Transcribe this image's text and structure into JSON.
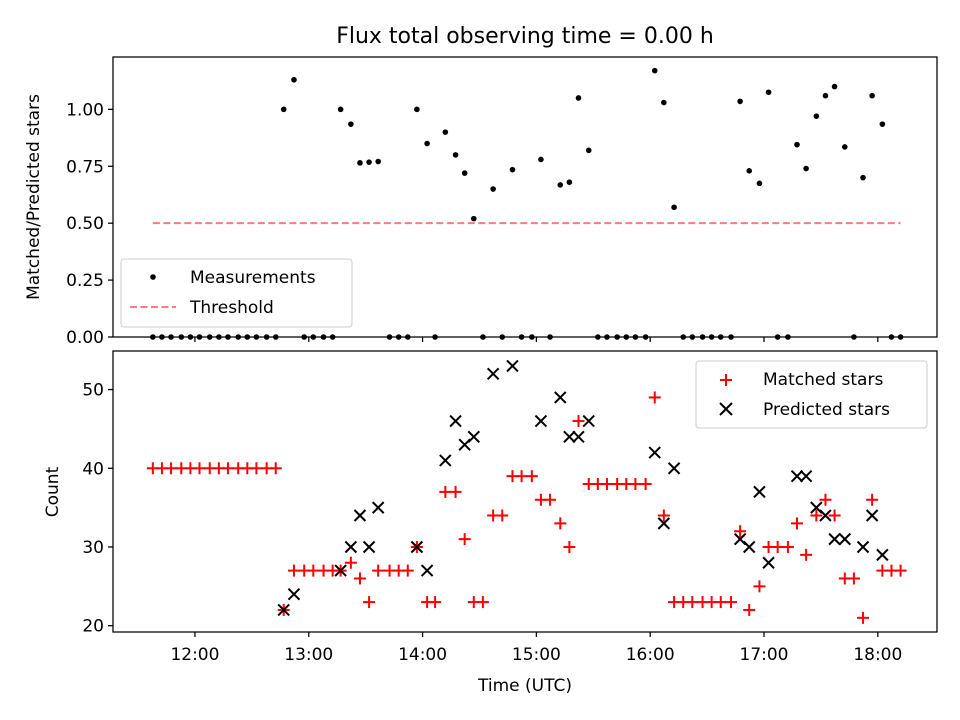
{
  "chart_data": [
    {
      "type": "scatter",
      "title": "Flux total observing time = 0.00 h",
      "xlabel": "",
      "ylabel": "Matched/Predicted stars",
      "xlim": [
        11.28,
        18.52
      ],
      "ylim": [
        0.0,
        1.23
      ],
      "yticks": [
        0.0,
        0.25,
        0.5,
        0.75,
        1.0
      ],
      "ytick_labels": [
        "0.00",
        "0.25",
        "0.50",
        "0.75",
        "1.00"
      ],
      "legend": {
        "position": "lower-left",
        "entries": [
          "Measurements",
          "Threshold"
        ]
      },
      "series": [
        {
          "name": "Measurements",
          "marker": "dot",
          "color": "#000000",
          "points": [
            [
              11.63,
              0
            ],
            [
              11.71,
              0
            ],
            [
              11.79,
              0
            ],
            [
              11.88,
              0
            ],
            [
              11.96,
              0
            ],
            [
              12.04,
              0
            ],
            [
              12.13,
              0
            ],
            [
              12.21,
              0
            ],
            [
              12.29,
              0
            ],
            [
              12.38,
              0
            ],
            [
              12.46,
              0
            ],
            [
              12.54,
              0
            ],
            [
              12.63,
              0
            ],
            [
              12.71,
              0
            ],
            [
              12.78,
              1.0
            ],
            [
              12.87,
              1.13
            ],
            [
              12.96,
              0
            ],
            [
              13.04,
              0
            ],
            [
              13.13,
              0
            ],
            [
              13.21,
              0
            ],
            [
              13.28,
              1.0
            ],
            [
              13.37,
              0.935
            ],
            [
              13.45,
              0.765
            ],
            [
              13.53,
              0.768
            ],
            [
              13.61,
              0.771
            ],
            [
              13.71,
              0
            ],
            [
              13.79,
              0
            ],
            [
              13.87,
              0
            ],
            [
              13.95,
              1.0
            ],
            [
              14.04,
              0.85
            ],
            [
              14.11,
              0
            ],
            [
              14.2,
              0.9
            ],
            [
              14.29,
              0.8
            ],
            [
              14.37,
              0.72
            ],
            [
              14.45,
              0.52
            ],
            [
              14.53,
              0
            ],
            [
              14.62,
              0.65
            ],
            [
              14.7,
              0
            ],
            [
              14.79,
              0.735
            ],
            [
              14.87,
              0
            ],
            [
              14.96,
              0
            ],
            [
              15.04,
              0.78
            ],
            [
              15.12,
              0
            ],
            [
              15.21,
              0.668
            ],
            [
              15.29,
              0.68
            ],
            [
              15.37,
              1.05
            ],
            [
              15.46,
              0.82
            ],
            [
              15.54,
              0
            ],
            [
              15.62,
              0
            ],
            [
              15.71,
              0
            ],
            [
              15.79,
              0
            ],
            [
              15.87,
              0
            ],
            [
              15.96,
              0
            ],
            [
              16.04,
              1.17
            ],
            [
              16.12,
              1.03
            ],
            [
              16.21,
              0.57
            ],
            [
              16.29,
              0
            ],
            [
              16.37,
              0
            ],
            [
              16.46,
              0
            ],
            [
              16.54,
              0
            ],
            [
              16.62,
              0
            ],
            [
              16.71,
              0
            ],
            [
              16.79,
              1.035
            ],
            [
              16.87,
              0.73
            ],
            [
              16.96,
              0.675
            ],
            [
              17.04,
              1.075
            ],
            [
              17.12,
              0
            ],
            [
              17.21,
              0
            ],
            [
              17.29,
              0.845
            ],
            [
              17.37,
              0.74
            ],
            [
              17.46,
              0.97
            ],
            [
              17.54,
              1.06
            ],
            [
              17.62,
              1.1
            ],
            [
              17.71,
              0.835
            ],
            [
              17.79,
              0
            ],
            [
              17.87,
              0.7
            ],
            [
              17.95,
              1.06
            ],
            [
              18.04,
              0.935
            ],
            [
              18.12,
              0
            ],
            [
              18.2,
              0
            ]
          ]
        },
        {
          "name": "Threshold",
          "style": "dashed",
          "color": "#ff7b7b",
          "points": [
            [
              11.63,
              0.5
            ],
            [
              18.2,
              0.5
            ]
          ]
        }
      ]
    },
    {
      "type": "scatter",
      "title": "",
      "xlabel": "Time (UTC)",
      "ylabel": "Count",
      "xlim": [
        11.28,
        18.52
      ],
      "ylim": [
        19.2,
        54.9
      ],
      "xticks": [
        12,
        13,
        14,
        15,
        16,
        17,
        18
      ],
      "xtick_labels": [
        "12:00",
        "13:00",
        "14:00",
        "15:00",
        "16:00",
        "17:00",
        "18:00"
      ],
      "yticks": [
        20,
        30,
        40,
        50
      ],
      "ytick_labels": [
        "20",
        "30",
        "40",
        "50"
      ],
      "legend": {
        "position": "top-right",
        "entries": [
          "Matched stars",
          "Predicted stars"
        ]
      },
      "series": [
        {
          "name": "Matched stars",
          "marker": "plus",
          "color": "#ff0000",
          "points": [
            [
              11.63,
              40
            ],
            [
              11.71,
              40
            ],
            [
              11.79,
              40
            ],
            [
              11.88,
              40
            ],
            [
              11.96,
              40
            ],
            [
              12.04,
              40
            ],
            [
              12.13,
              40
            ],
            [
              12.21,
              40
            ],
            [
              12.29,
              40
            ],
            [
              12.38,
              40
            ],
            [
              12.46,
              40
            ],
            [
              12.54,
              40
            ],
            [
              12.63,
              40
            ],
            [
              12.71,
              40
            ],
            [
              12.78,
              22
            ],
            [
              12.87,
              27
            ],
            [
              12.96,
              27
            ],
            [
              13.04,
              27
            ],
            [
              13.13,
              27
            ],
            [
              13.21,
              27
            ],
            [
              13.28,
              27
            ],
            [
              13.37,
              28
            ],
            [
              13.45,
              26
            ],
            [
              13.53,
              23
            ],
            [
              13.61,
              27
            ],
            [
              13.71,
              27
            ],
            [
              13.79,
              27
            ],
            [
              13.87,
              27
            ],
            [
              13.95,
              30
            ],
            [
              14.04,
              23
            ],
            [
              14.11,
              23
            ],
            [
              14.2,
              37
            ],
            [
              14.29,
              37
            ],
            [
              14.37,
              31
            ],
            [
              14.45,
              23
            ],
            [
              14.53,
              23
            ],
            [
              14.62,
              34
            ],
            [
              14.7,
              34
            ],
            [
              14.79,
              39
            ],
            [
              14.87,
              39
            ],
            [
              14.96,
              39
            ],
            [
              15.04,
              36
            ],
            [
              15.12,
              36
            ],
            [
              15.21,
              33
            ],
            [
              15.29,
              30
            ],
            [
              15.37,
              46
            ],
            [
              15.46,
              38
            ],
            [
              15.54,
              38
            ],
            [
              15.62,
              38
            ],
            [
              15.71,
              38
            ],
            [
              15.79,
              38
            ],
            [
              15.87,
              38
            ],
            [
              15.96,
              38
            ],
            [
              16.04,
              49
            ],
            [
              16.12,
              34
            ],
            [
              16.21,
              23
            ],
            [
              16.29,
              23
            ],
            [
              16.37,
              23
            ],
            [
              16.46,
              23
            ],
            [
              16.54,
              23
            ],
            [
              16.62,
              23
            ],
            [
              16.71,
              23
            ],
            [
              16.79,
              32
            ],
            [
              16.87,
              22
            ],
            [
              16.96,
              25
            ],
            [
              17.04,
              30
            ],
            [
              17.12,
              30
            ],
            [
              17.21,
              30
            ],
            [
              17.29,
              33
            ],
            [
              17.37,
              29
            ],
            [
              17.46,
              34
            ],
            [
              17.54,
              36
            ],
            [
              17.62,
              34
            ],
            [
              17.71,
              26
            ],
            [
              17.79,
              26
            ],
            [
              17.87,
              21
            ],
            [
              17.95,
              36
            ],
            [
              18.04,
              27
            ],
            [
              18.12,
              27
            ],
            [
              18.2,
              27
            ]
          ]
        },
        {
          "name": "Predicted stars",
          "marker": "x",
          "color": "#000000",
          "points": [
            [
              12.78,
              22
            ],
            [
              12.87,
              24
            ],
            [
              13.28,
              27
            ],
            [
              13.37,
              30
            ],
            [
              13.45,
              34
            ],
            [
              13.53,
              30
            ],
            [
              13.61,
              35
            ],
            [
              13.95,
              30
            ],
            [
              14.04,
              27
            ],
            [
              14.2,
              41
            ],
            [
              14.29,
              46
            ],
            [
              14.37,
              43
            ],
            [
              14.45,
              44
            ],
            [
              14.62,
              52
            ],
            [
              14.79,
              53
            ],
            [
              15.04,
              46
            ],
            [
              15.21,
              49
            ],
            [
              15.29,
              44
            ],
            [
              15.37,
              44
            ],
            [
              15.46,
              46
            ],
            [
              16.04,
              42
            ],
            [
              16.12,
              33
            ],
            [
              16.21,
              40
            ],
            [
              16.79,
              31
            ],
            [
              16.87,
              30
            ],
            [
              16.96,
              37
            ],
            [
              17.04,
              28
            ],
            [
              17.29,
              39
            ],
            [
              17.37,
              39
            ],
            [
              17.46,
              35
            ],
            [
              17.54,
              34
            ],
            [
              17.62,
              31
            ],
            [
              17.71,
              31
            ],
            [
              17.87,
              30
            ],
            [
              17.95,
              34
            ],
            [
              18.04,
              29
            ]
          ]
        }
      ]
    }
  ]
}
